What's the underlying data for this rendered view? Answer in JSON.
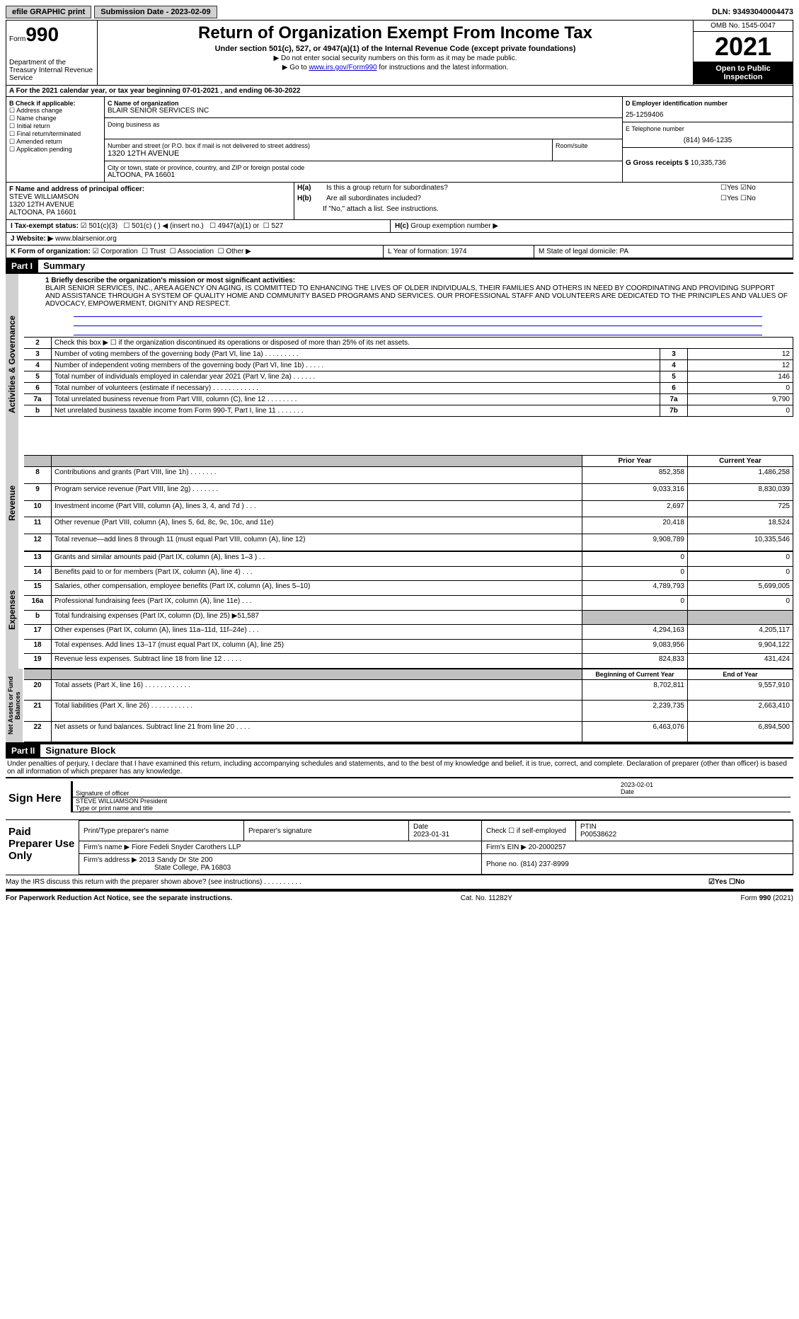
{
  "topbar": {
    "efile": "efile GRAPHIC print",
    "submission": "Submission Date - 2023-02-09",
    "dln": "DLN: 93493040004473"
  },
  "header": {
    "form": "Form",
    "form_no": "990",
    "dept": "Department of the Treasury Internal Revenue Service",
    "title": "Return of Organization Exempt From Income Tax",
    "sub": "Under section 501(c), 527, or 4947(a)(1) of the Internal Revenue Code (except private foundations)",
    "note1": "▶ Do not enter social security numbers on this form as it may be made public.",
    "note2_a": "▶ Go to ",
    "note2_link": "www.irs.gov/Form990",
    "note2_b": " for instructions and the latest information.",
    "omb": "OMB No. 1545-0047",
    "year": "2021",
    "open": "Open to Public Inspection"
  },
  "rowA": "A For the 2021 calendar year, or tax year beginning 07-01-2021    , and ending 06-30-2022",
  "colB": {
    "title": "B Check if applicable:",
    "items": [
      "Address change",
      "Name change",
      "Initial return",
      "Final return/terminated",
      "Amended return",
      "Application pending"
    ]
  },
  "colC": {
    "name_label": "C Name of organization",
    "name": "BLAIR SENIOR SERVICES INC",
    "dba_label": "Doing business as",
    "addr_label": "Number and street (or P.O. box if mail is not delivered to street address)",
    "addr": "1320 12TH AVENUE",
    "room_label": "Room/suite",
    "city_label": "City or town, state or province, country, and ZIP or foreign postal code",
    "city": "ALTOONA, PA  16601"
  },
  "colD": {
    "ein_label": "D Employer identification number",
    "ein": "25-1259406",
    "tel_label": "E Telephone number",
    "tel": "(814) 946-1235",
    "gross_label": "G Gross receipts $",
    "gross": "10,335,736"
  },
  "colF": {
    "label": "F  Name and address of principal officer:",
    "name": "STEVE WILLIAMSON",
    "addr1": "1320 12TH AVENUE",
    "addr2": "ALTOONA, PA  16601"
  },
  "colH": {
    "a": "Is this a group return for subordinates?",
    "b": "Are all subordinates included?",
    "b_note": "If \"No,\" attach a list. See instructions.",
    "c": "Group exemption number ▶"
  },
  "rowI": {
    "label": "I   Tax-exempt status:",
    "opts": [
      "501(c)(3)",
      "501(c) (  ) ◀ (insert no.)",
      "4947(a)(1) or",
      "527"
    ]
  },
  "rowJ": {
    "label": "J   Website: ▶",
    "val": "www.blairsenior.org"
  },
  "rowK": {
    "label": "K Form of organization:",
    "opts": [
      "Corporation",
      "Trust",
      "Association",
      "Other ▶"
    ]
  },
  "rowL": "L Year of formation: 1974",
  "rowM": "M State of legal domicile: PA",
  "part1": {
    "header": "Part I",
    "title": "Summary",
    "mission_label": "1  Briefly describe the organization's mission or most significant activities:",
    "mission": "BLAIR SENIOR SERVICES, INC., AREA AGENCY ON AGING, IS COMMITTED TO ENHANCING THE LIVES OF OLDER INDIVIDUALS, THEIR FAMILIES AND OTHERS IN NEED BY COORDINATING AND PROVIDING SUPPORT AND ASSISTANCE THROUGH A SYSTEM OF QUALITY HOME AND COMMUNITY BASED PROGRAMS AND SERVICES. OUR PROFESSIONAL STAFF AND VOLUNTEERS ARE DEDICATED TO THE PRINCIPLES AND VALUES OF ADVOCACY, EMPOWERMENT, DIGNITY AND RESPECT."
  },
  "sections": {
    "activities": "Activities & Governance",
    "revenue": "Revenue",
    "expenses": "Expenses",
    "netassets": "Net Assets or Fund Balances"
  },
  "gov_rows": [
    {
      "n": "2",
      "label": "Check this box ▶ ☐  if the organization discontinued its operations or disposed of more than 25% of its net assets.",
      "ref": "",
      "val": ""
    },
    {
      "n": "3",
      "label": "Number of voting members of the governing body (Part VI, line 1a)   .    .    .    .    .    .    .    .    .",
      "ref": "3",
      "val": "12"
    },
    {
      "n": "4",
      "label": "Number of independent voting members of the governing body (Part VI, line 1b)    .    .    .    .    .",
      "ref": "4",
      "val": "12"
    },
    {
      "n": "5",
      "label": "Total number of individuals employed in calendar year 2021 (Part V, line 2a)   .    .    .    .    .    .",
      "ref": "5",
      "val": "146"
    },
    {
      "n": "6",
      "label": "Total number of volunteers (estimate if necessary)   .    .    .    .    .    .    .    .    .    .    .    .",
      "ref": "6",
      "val": "0"
    },
    {
      "n": "7a",
      "label": "Total unrelated business revenue from Part VIII, column (C), line 12   .    .    .    .    .    .    .    .",
      "ref": "7a",
      "val": "9,790"
    },
    {
      "n": "b",
      "label": "Net unrelated business taxable income from Form 990-T, Part I, line 11   .    .    .    .    .    .    .",
      "ref": "7b",
      "val": "0"
    }
  ],
  "rev_header": {
    "prior": "Prior Year",
    "current": "Current Year"
  },
  "rev_rows": [
    {
      "n": "8",
      "label": "Contributions and grants (Part VIII, line 1h)   .    .    .    .    .    .    .",
      "p": "852,358",
      "c": "1,486,258"
    },
    {
      "n": "9",
      "label": "Program service revenue (Part VIII, line 2g)   .    .    .    .    .    .    .",
      "p": "9,033,316",
      "c": "8,830,039"
    },
    {
      "n": "10",
      "label": "Investment income (Part VIII, column (A), lines 3, 4, and 7d )   .    .    .",
      "p": "2,697",
      "c": "725"
    },
    {
      "n": "11",
      "label": "Other revenue (Part VIII, column (A), lines 5, 6d, 8c, 9c, 10c, and 11e)",
      "p": "20,418",
      "c": "18,524"
    },
    {
      "n": "12",
      "label": "Total revenue—add lines 8 through 11 (must equal Part VIII, column (A), line 12)",
      "p": "9,908,789",
      "c": "10,335,546"
    }
  ],
  "exp_rows": [
    {
      "n": "13",
      "label": "Grants and similar amounts paid (Part IX, column (A), lines 1–3 )  .    .",
      "p": "0",
      "c": "0"
    },
    {
      "n": "14",
      "label": "Benefits paid to or for members (Part IX, column (A), line 4)   .    .    .",
      "p": "0",
      "c": "0"
    },
    {
      "n": "15",
      "label": "Salaries, other compensation, employee benefits (Part IX, column (A), lines 5–10)",
      "p": "4,789,793",
      "c": "5,699,005"
    },
    {
      "n": "16a",
      "label": "Professional fundraising fees (Part IX, column (A), line 11e)   .    .    .",
      "p": "0",
      "c": "0"
    },
    {
      "n": "b",
      "label": "Total fundraising expenses (Part IX, column (D), line 25) ▶51,587",
      "p": "",
      "c": "",
      "gray": true
    },
    {
      "n": "17",
      "label": "Other expenses (Part IX, column (A), lines 11a–11d, 11f–24e)   .    .    .",
      "p": "4,294,163",
      "c": "4,205,117"
    },
    {
      "n": "18",
      "label": "Total expenses. Add lines 13–17 (must equal Part IX, column (A), line 25)",
      "p": "9,083,956",
      "c": "9,904,122"
    },
    {
      "n": "19",
      "label": "Revenue less expenses. Subtract line 18 from line 12   .    .    .    .    .",
      "p": "824,833",
      "c": "431,424"
    }
  ],
  "net_header": {
    "begin": "Beginning of Current Year",
    "end": "End of Year年",
    "ististist": ""
  },
  "net_rows": [
    {
      "n": "20",
      "label": "Total assets (Part X, line 16)   .    .    .    .    .    .    .    .    .    .    .    .",
      "p": "8,702,811",
      "c": "9,557,910"
    },
    {
      "n": "21",
      "label": "Total liabilities (Part X, line 26)   .    .    .    .    .    .    .    .    .    .    .",
      "p": "2,239,735",
      "c": "2,663,410"
    },
    {
      "n": "22",
      "label": "Net assets or fund balances. Subtract line 21 from line 20   .    .    .    .",
      "p": "6,463,076",
      "c": "6,894,500"
    }
  ],
  "part2": {
    "header": "Part II",
    "title": "Signature Block",
    "decl": "Under penalties of perjury, I declare that I have examined this return, including accompanying schedules and statements, and to the best of my knowledge and belief, it is true, correct, and complete. Declaration of preparer (other than officer) is based on all information of which preparer has any knowledge."
  },
  "sign": {
    "here": "Sign Here",
    "sig_label": "Signature of officer",
    "date": "2023-02-01",
    "date_label": "Date",
    "name": "STEVE WILLIAMSON President",
    "name_label": "Type or print name and title"
  },
  "paid": {
    "title": "Paid Preparer Use Only",
    "h1": "Print/Type preparer's name",
    "h2": "Preparer's signature",
    "h3": "Date",
    "date": "2023-01-31",
    "check": "Check ☐ if self-employed",
    "ptin_label": "PTIN",
    "ptin": "P00538622",
    "firm_name_label": "Firm's name    ▶",
    "firm_name": "Fiore Fedeli Snyder Carothers LLP",
    "firm_ein_label": "Firm's EIN ▶",
    "firm_ein": "20-2000257",
    "firm_addr_label": "Firm's address ▶",
    "firm_addr1": "2013 Sandy Dr Ste 200",
    "firm_addr2": "State College, PA  16803",
    "phone_label": "Phone no.",
    "phone": "(814) 237-8999"
  },
  "discuss": "May the IRS discuss this return with the preparer shown above? (see instructions)   .    .    .    .    .    .    .    .    .    .",
  "discuss_yes": "☑Yes  ☐No",
  "footer": {
    "left": "For Paperwork Reduction Act Notice, see the separate instructions.",
    "mid": "Cat. No. 11282Y",
    "right": "Form 990 (2021)"
  }
}
